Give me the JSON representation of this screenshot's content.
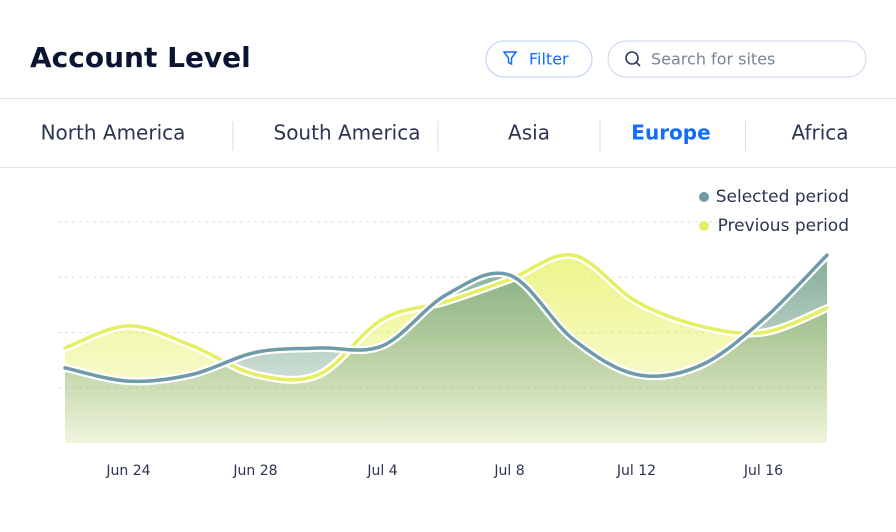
{
  "header": {
    "title": "Account Level",
    "filter": "Filter",
    "search_placeholder": "Search for sites"
  },
  "tabs": {
    "items": [
      "North America",
      "South America",
      "Asia",
      "Europe",
      "Africa"
    ],
    "active": "Europe"
  },
  "chart_data": {
    "type": "area",
    "categories": [
      null,
      "Jun 24",
      null,
      "Jun 28",
      null,
      "Jul 4",
      null,
      "Jul 8",
      null,
      "Jul 12",
      null,
      "Jul 16",
      null
    ],
    "series": [
      {
        "name": "Selected period",
        "color": "#6f9aa8",
        "values": [
          34,
          28,
          31,
          41,
          43,
          44,
          67,
          76,
          47,
          31,
          35,
          56,
          85
        ]
      },
      {
        "name": "Previous period",
        "color": "#e4ef63",
        "values": [
          43,
          53,
          44,
          31,
          31,
          56,
          64,
          74,
          85,
          64,
          53,
          50,
          61
        ]
      }
    ],
    "ylim": [
      0,
      100
    ],
    "yticks": [
      25,
      50,
      75,
      100
    ],
    "grid": true,
    "legend": "top-right"
  }
}
